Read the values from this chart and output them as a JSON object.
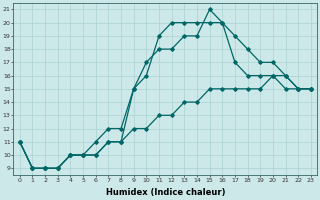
{
  "xlabel": "Humidex (Indice chaleur)",
  "bg_color": "#cce8e8",
  "grid_color": "#b0d4d4",
  "line_color": "#006666",
  "xlim": [
    -0.5,
    23.5
  ],
  "ylim": [
    8.5,
    21.5
  ],
  "xticks": [
    0,
    1,
    2,
    3,
    4,
    5,
    6,
    7,
    8,
    9,
    10,
    11,
    12,
    13,
    14,
    15,
    16,
    17,
    18,
    19,
    20,
    21,
    22,
    23
  ],
  "yticks": [
    9,
    10,
    11,
    12,
    13,
    14,
    15,
    16,
    17,
    18,
    19,
    20,
    21
  ],
  "line1_x": [
    0,
    1,
    2,
    3,
    4,
    5,
    6,
    7,
    8,
    9,
    10,
    11,
    12,
    13,
    14,
    15,
    16,
    17,
    18,
    19,
    20,
    21,
    22,
    23
  ],
  "line1_y": [
    11,
    9,
    9,
    9,
    10,
    10,
    11,
    12,
    12,
    15,
    17,
    18,
    18,
    19,
    19,
    21,
    20,
    19,
    18,
    17,
    17,
    16,
    15,
    15
  ],
  "line2_x": [
    0,
    1,
    2,
    3,
    4,
    5,
    6,
    7,
    8,
    9,
    10,
    11,
    12,
    13,
    14,
    15,
    16,
    17,
    18,
    19,
    20,
    21,
    22,
    23
  ],
  "line2_y": [
    11,
    9,
    9,
    9,
    10,
    10,
    10,
    11,
    11,
    15,
    16,
    19,
    20,
    20,
    20,
    20,
    20,
    17,
    16,
    16,
    16,
    15,
    15,
    15
  ],
  "line3_x": [
    0,
    1,
    2,
    3,
    4,
    5,
    6,
    7,
    8,
    9,
    10,
    11,
    12,
    13,
    14,
    15,
    16,
    17,
    18,
    19,
    20,
    21,
    22,
    23
  ],
  "line3_y": [
    11,
    9,
    9,
    9,
    10,
    10,
    10,
    11,
    11,
    12,
    12,
    13,
    13,
    14,
    14,
    15,
    15,
    15,
    15,
    15,
    16,
    16,
    15,
    15
  ],
  "marker": "D",
  "markersize": 1.8,
  "linewidth": 0.9,
  "tick_fontsize": 4.5,
  "xlabel_fontsize": 6
}
